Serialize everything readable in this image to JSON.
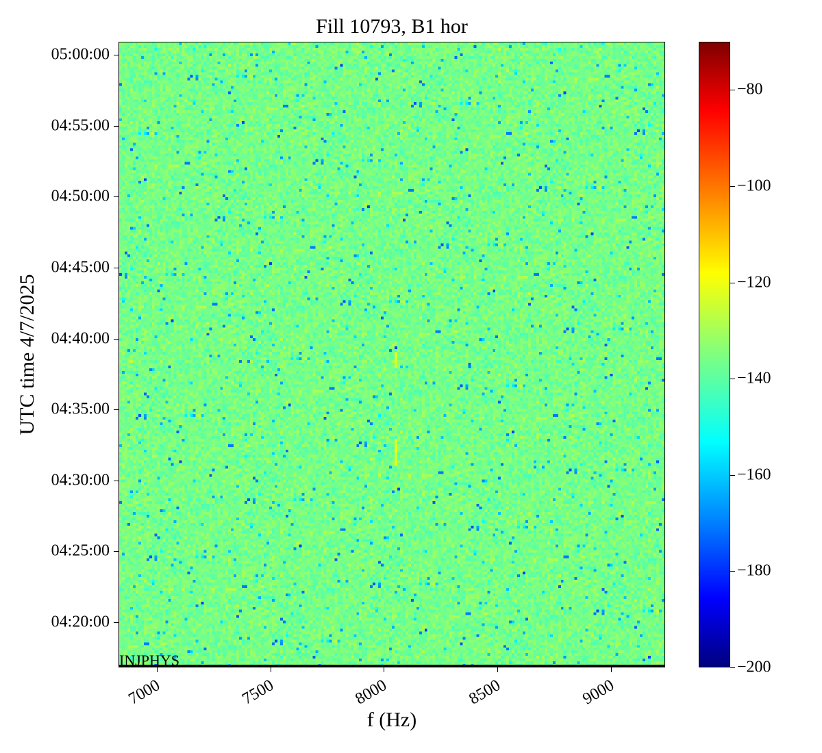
{
  "chart_data": {
    "type": "heatmap",
    "title": "Fill 10793, B1 hor",
    "xlabel": "f (Hz)",
    "ylabel": "UTC time 4/7/2025",
    "xlim": [
      6830,
      9240
    ],
    "ylim": [
      "04:16:49",
      "05:00:55"
    ],
    "x_ticks": [
      7000,
      7500,
      8000,
      8500,
      9000
    ],
    "x_tick_labels": [
      "7000",
      "7500",
      "8000",
      "8500",
      "9000"
    ],
    "y_ticks": [
      "04:20:00",
      "04:25:00",
      "04:30:00",
      "04:35:00",
      "04:40:00",
      "04:45:00",
      "04:50:00",
      "04:55:00",
      "05:00:00"
    ],
    "colormap": "jet",
    "colorbar": {
      "range": [
        -200,
        -70
      ],
      "ticks": [
        -80,
        -100,
        -120,
        -140,
        -160,
        -180,
        -200
      ],
      "tick_labels": [
        "−80",
        "−100",
        "−120",
        "−140",
        "−160",
        "−180",
        "−200"
      ]
    },
    "background_level": -136,
    "features": [
      {
        "f_hz": 8050,
        "time_start": "04:31:00",
        "time_end": "04:33:00",
        "level": -122
      },
      {
        "f_hz": 8050,
        "time_start": "04:38:00",
        "time_end": "04:39:00",
        "level": -125
      }
    ],
    "annotation": "INJPHYS"
  }
}
